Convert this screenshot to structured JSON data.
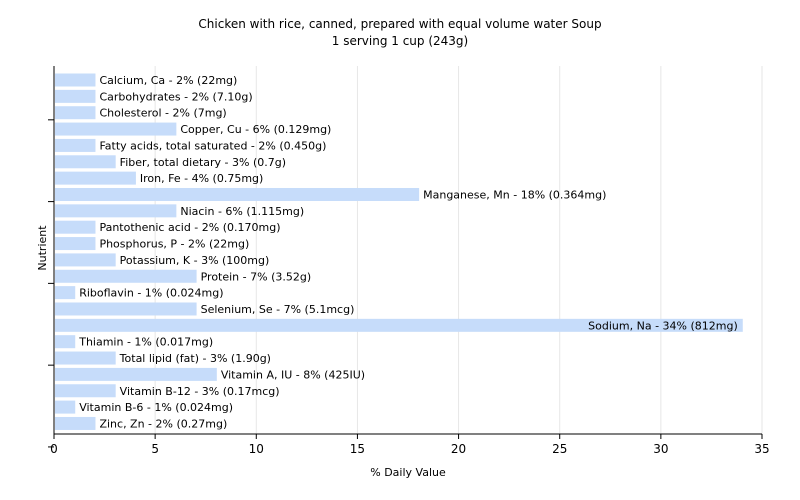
{
  "chart_data": {
    "type": "bar",
    "orientation": "horizontal",
    "title": "Chicken with rice, canned, prepared with equal volume water Soup",
    "subtitle": "1 serving 1 cup (243g)",
    "xlabel": "% Daily Value",
    "ylabel": "Nutrient",
    "xlim": [
      0,
      35
    ],
    "x_ticks": [
      "0",
      "5",
      "10",
      "15",
      "20",
      "25",
      "30",
      "35"
    ],
    "grid": "vertical",
    "bar_color": "#c6dcfa",
    "categories": [
      "Calcium, Ca",
      "Carbohydrates",
      "Cholesterol",
      "Copper, Cu",
      "Fatty acids, total saturated",
      "Fiber, total dietary",
      "Iron, Fe",
      "Manganese, Mn",
      "Niacin",
      "Pantothenic acid",
      "Phosphorus, P",
      "Potassium, K",
      "Protein",
      "Riboflavin",
      "Selenium, Se",
      "Sodium, Na",
      "Thiamin",
      "Total lipid (fat)",
      "Vitamin A, IU",
      "Vitamin B-12",
      "Vitamin B-6",
      "Zinc, Zn"
    ],
    "values": [
      2,
      2,
      2,
      6,
      2,
      3,
      4,
      18,
      6,
      2,
      2,
      3,
      7,
      1,
      7,
      34,
      1,
      3,
      8,
      3,
      1,
      2
    ],
    "labels": [
      "Calcium, Ca - 2% (22mg)",
      "Carbohydrates - 2% (7.10g)",
      "Cholesterol - 2% (7mg)",
      "Copper, Cu - 6% (0.129mg)",
      "Fatty acids, total saturated - 2% (0.450g)",
      "Fiber, total dietary - 3% (0.7g)",
      "Iron, Fe - 4% (0.75mg)",
      "Manganese, Mn - 18% (0.364mg)",
      "Niacin - 6% (1.115mg)",
      "Pantothenic acid - 2% (0.170mg)",
      "Phosphorus, P - 2% (22mg)",
      "Potassium, K - 3% (100mg)",
      "Protein - 7% (3.52g)",
      "Riboflavin - 1% (0.024mg)",
      "Selenium, Se - 7% (5.1mcg)",
      "Sodium, Na - 34% (812mg)",
      "Thiamin - 1% (0.017mg)",
      "Total lipid (fat) - 3% (1.90g)",
      "Vitamin A, IU - 8% (425IU)",
      "Vitamin B-12 - 3% (0.17mcg)",
      "Vitamin B-6 - 1% (0.024mg)",
      "Zinc, Zn - 2% (0.27mg)"
    ]
  }
}
